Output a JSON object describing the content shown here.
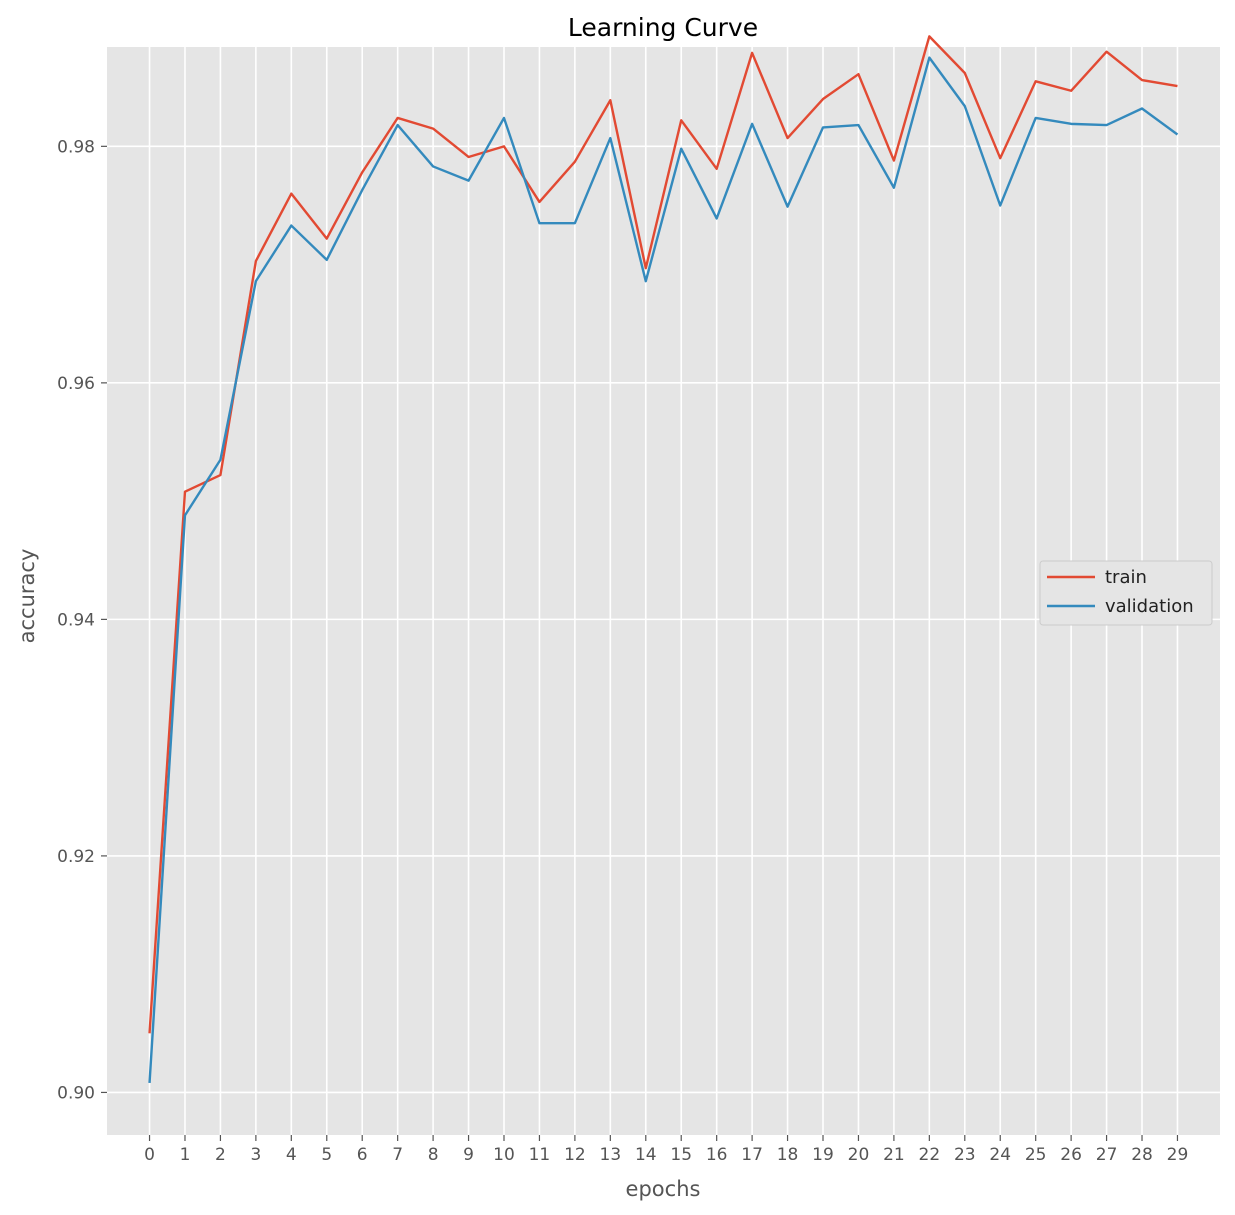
{
  "chart_data": {
    "type": "line",
    "title": "Learning Curve",
    "xlabel": "epochs",
    "ylabel": "accuracy",
    "x": [
      0,
      1,
      2,
      3,
      4,
      5,
      6,
      7,
      8,
      9,
      10,
      11,
      12,
      13,
      14,
      15,
      16,
      17,
      18,
      19,
      20,
      21,
      22,
      23,
      24,
      25,
      26,
      27,
      28,
      29
    ],
    "xlim": [
      -1.2,
      30.2
    ],
    "ylim": [
      0.8964,
      0.9884
    ],
    "yticks": [
      0.9,
      0.92,
      0.94,
      0.96,
      0.98
    ],
    "ytick_labels": [
      "0.90",
      "0.92",
      "0.94",
      "0.96",
      "0.98"
    ],
    "xtick_labels": [
      "0",
      "1",
      "2",
      "3",
      "4",
      "5",
      "6",
      "7",
      "8",
      "9",
      "10",
      "11",
      "12",
      "13",
      "14",
      "15",
      "16",
      "17",
      "18",
      "19",
      "20",
      "21",
      "22",
      "23",
      "24",
      "25",
      "26",
      "27",
      "28",
      "29"
    ],
    "grid": true,
    "legend_position": "center-right",
    "series": [
      {
        "name": "train",
        "color": "#e24a33",
        "values": [
          0.905,
          0.9508,
          0.9522,
          0.9703,
          0.976,
          0.9722,
          0.9778,
          0.9824,
          0.9815,
          0.9791,
          0.98,
          0.9753,
          0.9787,
          0.9839,
          0.9697,
          0.9822,
          0.9781,
          0.9879,
          0.9807,
          0.984,
          0.9861,
          0.9788,
          0.9893,
          0.9862,
          0.979,
          0.9855,
          0.9847,
          0.988,
          0.9856,
          0.9851
        ]
      },
      {
        "name": "validation",
        "color": "#348abd",
        "values": [
          0.9008,
          0.9488,
          0.9535,
          0.9686,
          0.9733,
          0.9704,
          0.9763,
          0.9818,
          0.9783,
          0.9771,
          0.9824,
          0.9735,
          0.9735,
          0.9807,
          0.9686,
          0.9798,
          0.9739,
          0.9819,
          0.9749,
          0.9816,
          0.9818,
          0.9765,
          0.9875,
          0.9834,
          0.975,
          0.9824,
          0.9819,
          0.9818,
          0.9832,
          0.981
        ]
      }
    ]
  }
}
